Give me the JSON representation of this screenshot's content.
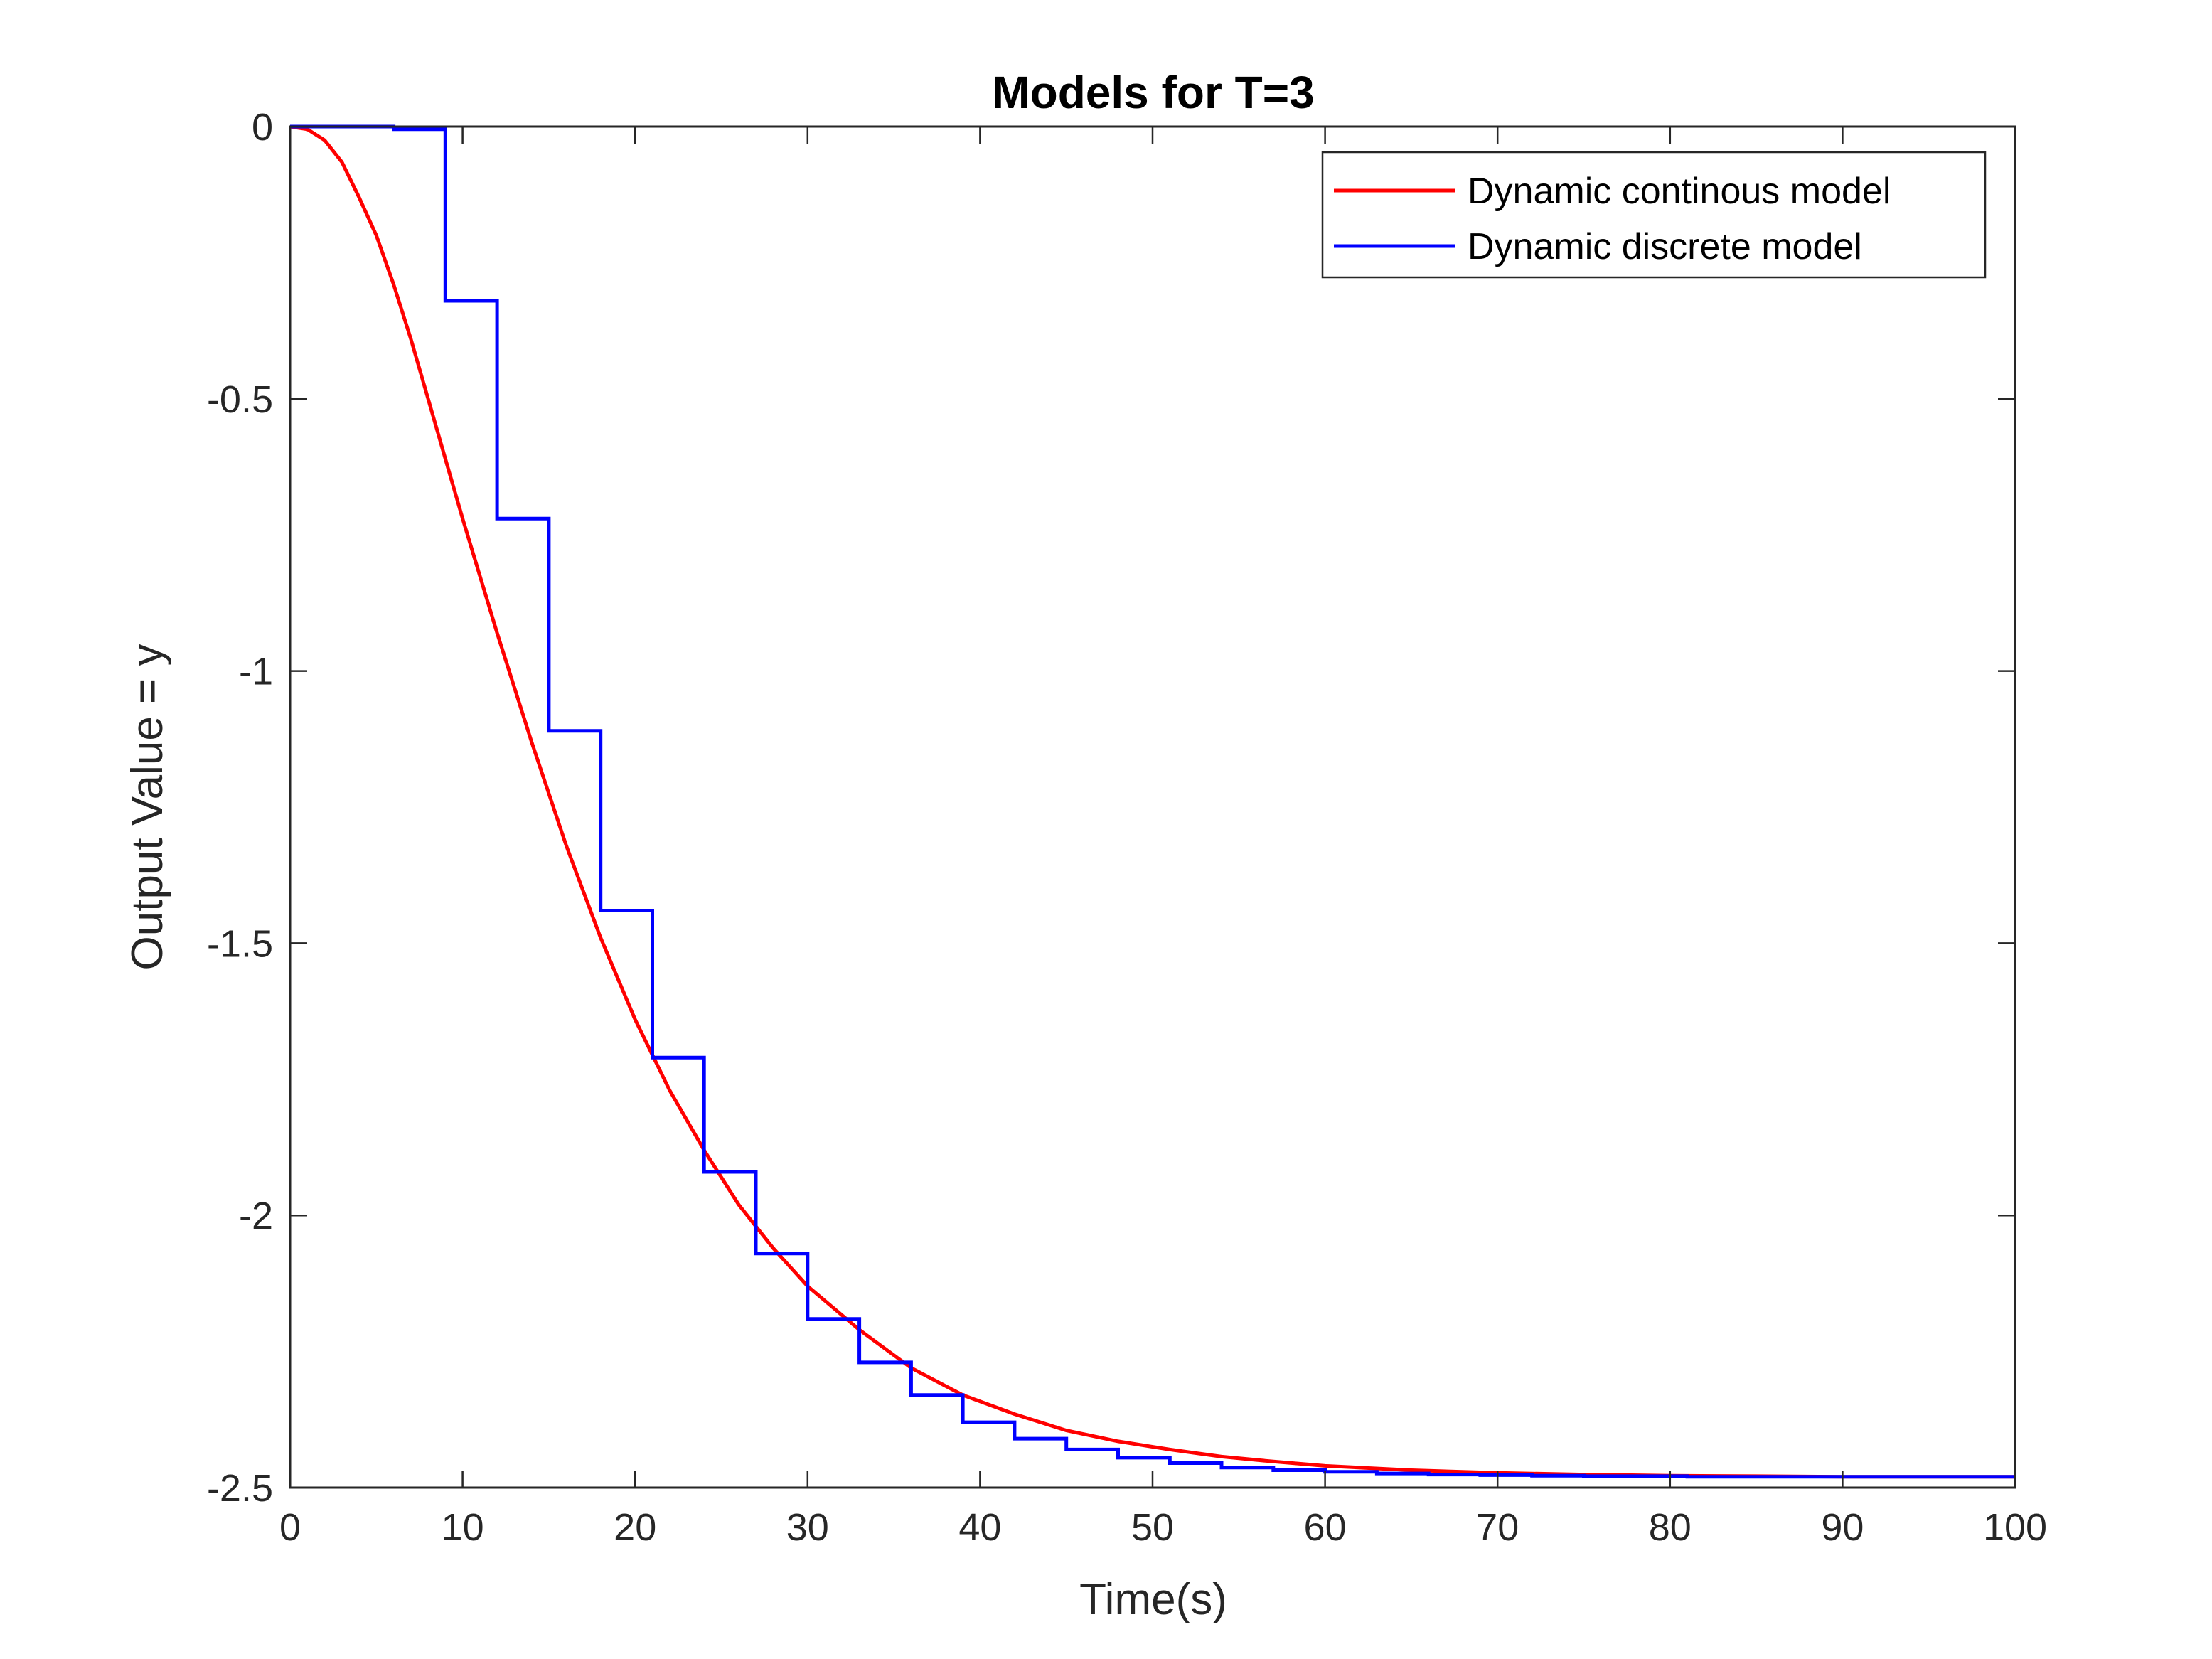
{
  "chart_data": {
    "type": "line",
    "title": "Models for T=3",
    "xlabel": "Time(s)",
    "ylabel": "Output Value = y",
    "xlim": [
      0,
      100
    ],
    "ylim": [
      -2.5,
      0
    ],
    "xticks": [
      0,
      10,
      20,
      30,
      40,
      50,
      60,
      70,
      80,
      90,
      100
    ],
    "yticks": [
      0,
      -0.5,
      -1,
      -1.5,
      -2,
      -2.5
    ],
    "xtick_labels": [
      "0",
      "10",
      "20",
      "30",
      "40",
      "50",
      "60",
      "70",
      "80",
      "90",
      "100"
    ],
    "ytick_labels": [
      "0",
      "-0.5",
      "-1",
      "-1.5",
      "-2",
      "-2.5"
    ],
    "grid": false,
    "legend_position": "top-right",
    "series": [
      {
        "name": "Dynamic continous model",
        "color": "#ff0000",
        "style": "line",
        "x": [
          0,
          1,
          2,
          3,
          4,
          5,
          6,
          7,
          8,
          9,
          10,
          12,
          14,
          16,
          18,
          20,
          22,
          24,
          26,
          28,
          30,
          33,
          36,
          39,
          42,
          45,
          48,
          51,
          54,
          57,
          60,
          65,
          70,
          75,
          80,
          85,
          90,
          95,
          100
        ],
        "y": [
          0,
          -0.005,
          -0.025,
          -0.065,
          -0.13,
          -0.2,
          -0.29,
          -0.39,
          -0.5,
          -0.61,
          -0.72,
          -0.93,
          -1.13,
          -1.32,
          -1.49,
          -1.64,
          -1.77,
          -1.88,
          -1.98,
          -2.06,
          -2.13,
          -2.21,
          -2.28,
          -2.33,
          -2.365,
          -2.395,
          -2.415,
          -2.43,
          -2.443,
          -2.452,
          -2.46,
          -2.468,
          -2.473,
          -2.476,
          -2.478,
          -2.479,
          -2.48,
          -2.48,
          -2.48
        ]
      },
      {
        "name": "Dynamic discrete model",
        "color": "#0000ff",
        "style": "stairs",
        "x": [
          0,
          3,
          6,
          9,
          12,
          15,
          18,
          21,
          24,
          27,
          30,
          33,
          36,
          39,
          42,
          45,
          48,
          51,
          54,
          57,
          60,
          63,
          66,
          69,
          72,
          75,
          78,
          81,
          84,
          87,
          90,
          93,
          96,
          99
        ],
        "y": [
          0,
          0,
          -0.005,
          -0.32,
          -0.72,
          -1.11,
          -1.44,
          -1.71,
          -1.92,
          -2.07,
          -2.19,
          -2.27,
          -2.33,
          -2.38,
          -2.41,
          -2.43,
          -2.445,
          -2.455,
          -2.463,
          -2.468,
          -2.471,
          -2.474,
          -2.476,
          -2.477,
          -2.478,
          -2.479,
          -2.479,
          -2.48,
          -2.48,
          -2.48,
          -2.48,
          -2.48,
          -2.48,
          -2.48
        ]
      }
    ]
  }
}
